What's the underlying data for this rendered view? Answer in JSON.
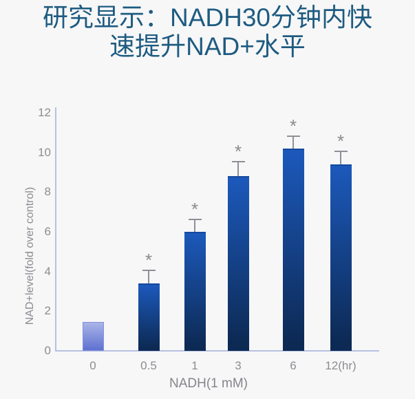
{
  "page": {
    "background_color": "#f7f7f8"
  },
  "title": {
    "line1": "研究显示：NADH30分钟内快",
    "line2": "速提升NAD+水平",
    "color": "#1e5b80"
  },
  "chart_data": {
    "type": "bar",
    "title": "",
    "categories": [
      "0",
      "0.5",
      "1",
      "3",
      "6",
      "12(hr)"
    ],
    "values": [
      1.45,
      3.4,
      6.0,
      8.8,
      10.2,
      9.4
    ],
    "errors_up": [
      0,
      0.7,
      0.65,
      0.75,
      0.65,
      0.7
    ],
    "significance": [
      "",
      "*",
      "*",
      "*",
      "*",
      "*"
    ],
    "xlabel": "NADH(1 mM)",
    "ylabel": "NAD+level(fold over control)",
    "ylim": [
      0,
      12.27
    ],
    "yticks": [
      0,
      2,
      4,
      6,
      8,
      10,
      12
    ],
    "grid": false,
    "legend": null,
    "styles": {
      "control_bar_top": "#a9b4e8",
      "control_bar_bottom": "#5e71d0",
      "control_bar_border": "#8290da",
      "bar_top": "#1c59bb",
      "bar_bottom": "#0d2a55",
      "bar_cap": "#15479e",
      "axis_color": "#b6c0e0",
      "tick_label_color": "#8c8c91",
      "axis_title_color": "#85858a",
      "error_bar_color": "#8f9096",
      "asterisk_color": "#8a8a8e"
    }
  }
}
